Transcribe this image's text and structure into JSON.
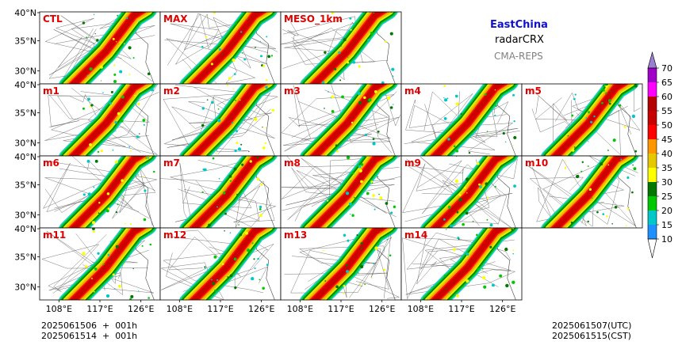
{
  "header": {
    "region": "EastChina",
    "variable": "radarCRX",
    "system": "CMA-REPS"
  },
  "panels": [
    {
      "label": "CTL"
    },
    {
      "label": "MAX"
    },
    {
      "label": "MESO_1km"
    },
    {
      "label": "m1"
    },
    {
      "label": "m2"
    },
    {
      "label": "m3"
    },
    {
      "label": "m4"
    },
    {
      "label": "m5"
    },
    {
      "label": "m6"
    },
    {
      "label": "m7"
    },
    {
      "label": "m8"
    },
    {
      "label": "m9"
    },
    {
      "label": "m10"
    },
    {
      "label": "m11"
    },
    {
      "label": "m12"
    },
    {
      "label": "m13"
    },
    {
      "label": "m14"
    }
  ],
  "axes": {
    "lat_ticks": [
      "40°N",
      "35°N",
      "30°N"
    ],
    "lon_ticks": [
      "108°E",
      "117°E",
      "126°E"
    ]
  },
  "colorbar": {
    "levels": [
      "10",
      "15",
      "20",
      "25",
      "30",
      "35",
      "40",
      "45",
      "50",
      "55",
      "60",
      "65",
      "70"
    ],
    "colors": [
      "#1e90ff",
      "#00c8c8",
      "#00c800",
      "#007800",
      "#ffff00",
      "#e6c800",
      "#ff9600",
      "#ff0000",
      "#c80000",
      "#b40000",
      "#ff00ff",
      "#a000c8",
      "#9b7fd0"
    ]
  },
  "footer": {
    "left_line1": "2025061506  +  001h",
    "left_line2": "2025061514  +  001h",
    "right_line1": "2025061507(UTC)",
    "right_line2": "2025061515(CST)"
  }
}
